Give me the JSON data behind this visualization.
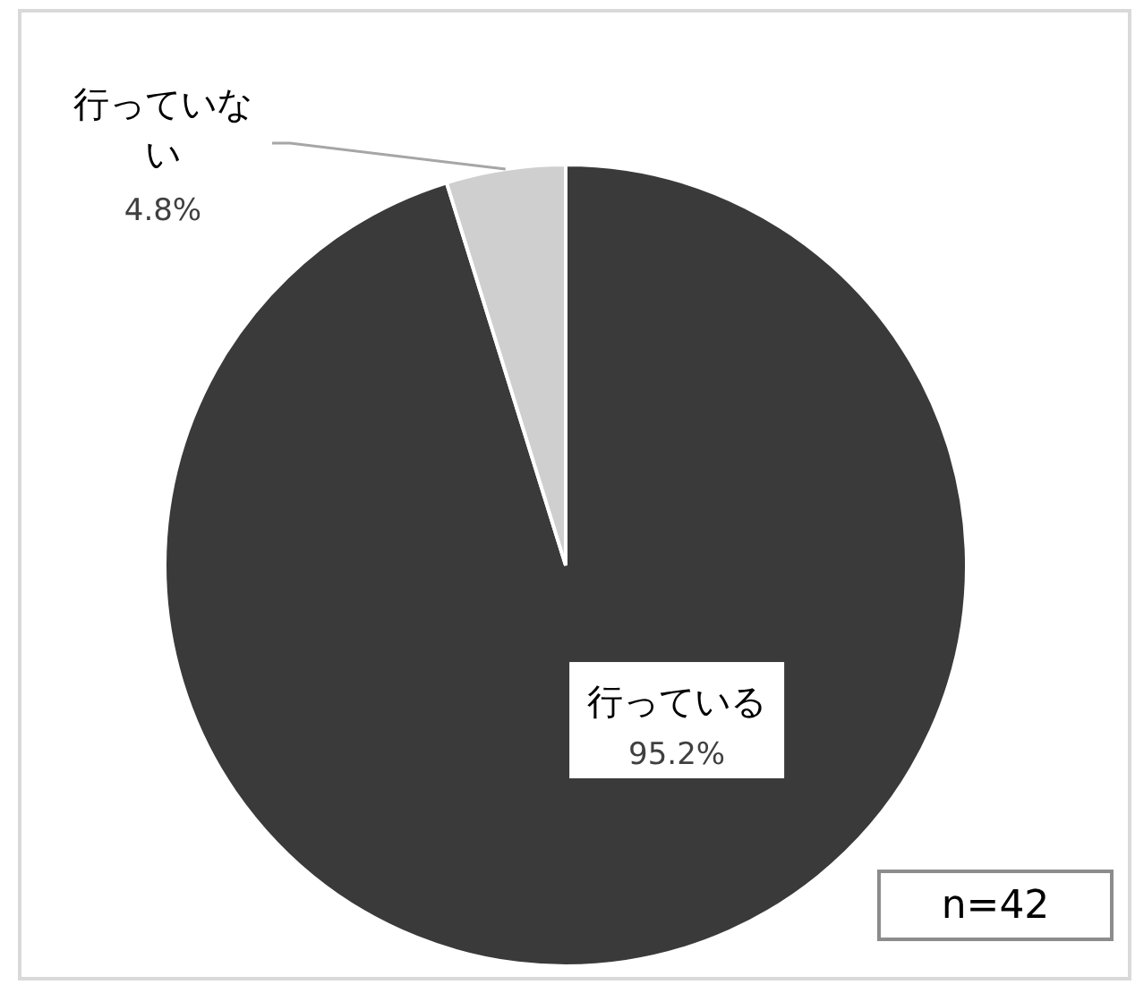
{
  "chart_data": {
    "type": "pie",
    "categories": [
      "行っている",
      "行っていない"
    ],
    "values": [
      95.2,
      4.8
    ],
    "colors": [
      "#3a3a3a",
      "#cfcfcf"
    ],
    "value_labels": [
      "95.2%",
      "4.8%"
    ],
    "annotations": [
      "n=42"
    ]
  }
}
